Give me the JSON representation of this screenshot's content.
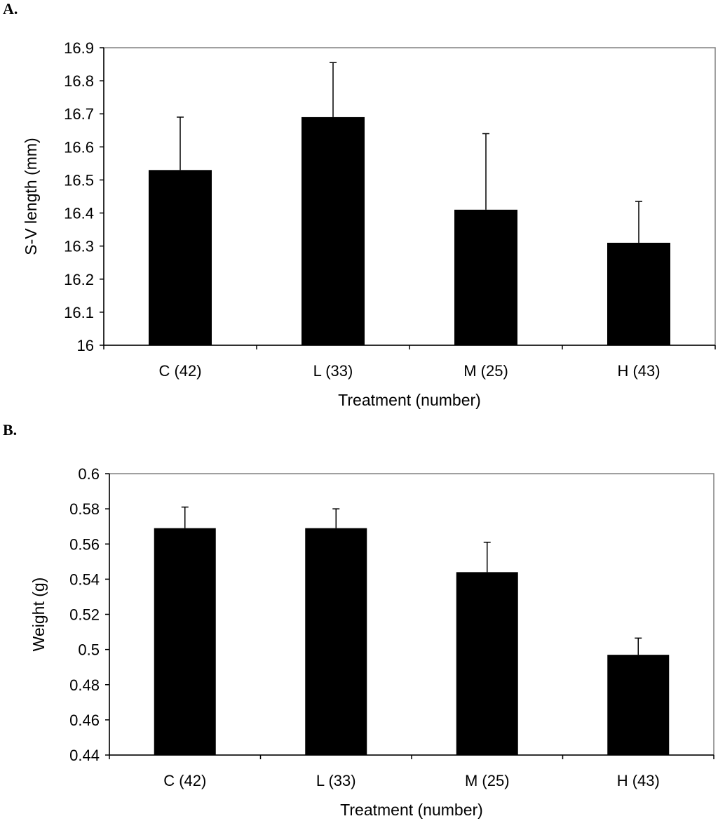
{
  "chart_data": [
    {
      "panel_label": "A.",
      "type": "bar",
      "xlabel": "Treatment (number)",
      "ylabel": "S-V length (mm)",
      "categories": [
        "C (42)",
        "L (33)",
        "M (25)",
        "H (43)"
      ],
      "values": [
        16.53,
        16.69,
        16.41,
        16.31
      ],
      "errors": [
        0.16,
        0.165,
        0.23,
        0.125
      ],
      "ylim": [
        16,
        16.9
      ],
      "yticks": [
        "16",
        "16.1",
        "16.2",
        "16.3",
        "16.4",
        "16.5",
        "16.6",
        "16.7",
        "16.8",
        "16.9"
      ],
      "bar_color": "#000000",
      "grid": false
    },
    {
      "panel_label": "B.",
      "type": "bar",
      "xlabel": "Treatment (number)",
      "ylabel": "Weight (g)",
      "categories": [
        "C (42)",
        "L (33)",
        "M (25)",
        "H (43)"
      ],
      "values": [
        0.569,
        0.569,
        0.544,
        0.497
      ],
      "errors": [
        0.012,
        0.011,
        0.017,
        0.0095
      ],
      "ylim": [
        0.44,
        0.6
      ],
      "yticks": [
        "0.44",
        "0.46",
        "0.48",
        "0.5",
        "0.52",
        "0.54",
        "0.56",
        "0.58",
        "0.6"
      ],
      "bar_color": "#000000",
      "grid": false
    }
  ]
}
